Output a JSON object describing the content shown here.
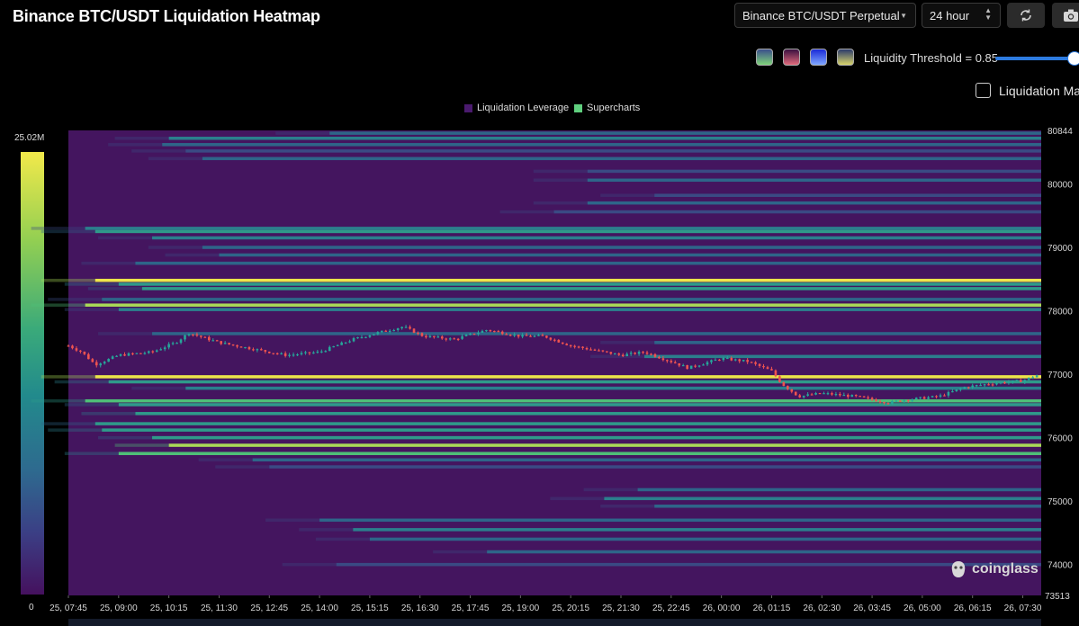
{
  "title": "Binance BTC/USDT Liquidation Heatmap",
  "controls": {
    "pair_select": "Binance BTC/USDT Perpetual",
    "range_select": "24 hour",
    "refresh_icon": "refresh-icon",
    "camera_icon": "camera-icon",
    "palettes": [
      {
        "name": "viridis",
        "from": "#3b4f8c",
        "to": "#7fd37a"
      },
      {
        "name": "magma",
        "from": "#3a1040",
        "to": "#e06a7c"
      },
      {
        "name": "blue",
        "from": "#1a2bd8",
        "to": "#7fa6ff"
      },
      {
        "name": "cividis",
        "from": "#2b3a6b",
        "to": "#d8d36b"
      }
    ],
    "threshold_label": "Liquidity Threshold = 0.85",
    "threshold_value": 0.85,
    "checkbox_label": "Liquidation Map"
  },
  "legend": [
    {
      "label": "Liquidation Leverage",
      "color": "#4a1a6e"
    },
    {
      "label": "Supercharts",
      "color": "#5fcf7e"
    }
  ],
  "colorbar": {
    "max_label": "25.02M",
    "min_label": "0"
  },
  "chart_data": {
    "type": "heatmap",
    "background_color": "#44155f",
    "x_ticks": [
      "25, 07:45",
      "25, 09:00",
      "25, 10:15",
      "25, 11:30",
      "25, 12:45",
      "25, 14:00",
      "25, 15:15",
      "25, 16:30",
      "25, 17:45",
      "25, 19:00",
      "25, 20:15",
      "25, 21:30",
      "25, 22:45",
      "26, 00:00",
      "26, 01:15",
      "26, 02:30",
      "26, 03:45",
      "26, 05:00",
      "26, 06:15",
      "26, 07:30"
    ],
    "y_top": "80844",
    "y_bottom": "73513",
    "y_ticks": [
      "80000",
      "79000",
      "78000",
      "77000",
      "76000",
      "75000",
      "74000"
    ],
    "ylim": [
      73513,
      80844
    ],
    "bands": [
      {
        "p": 80800,
        "s": 7.8,
        "l": 0.35
      },
      {
        "p": 80720,
        "s": 3.0,
        "l": 0.45
      },
      {
        "p": 80620,
        "s": 2.8,
        "l": 0.4
      },
      {
        "p": 80520,
        "s": 3.5,
        "l": 0.3
      },
      {
        "p": 80400,
        "s": 4.0,
        "l": 0.35
      },
      {
        "p": 80200,
        "s": 15.5,
        "l": 0.3
      },
      {
        "p": 80060,
        "s": 15.5,
        "l": 0.35
      },
      {
        "p": 79820,
        "s": 17.5,
        "l": 0.3
      },
      {
        "p": 79700,
        "s": 15.5,
        "l": 0.35
      },
      {
        "p": 79560,
        "s": 14.5,
        "l": 0.3
      },
      {
        "p": 79300,
        "s": 0.5,
        "l": 0.45
      },
      {
        "p": 79250,
        "s": 0.8,
        "l": 0.5
      },
      {
        "p": 79150,
        "s": 2.5,
        "l": 0.45
      },
      {
        "p": 79000,
        "s": 4.0,
        "l": 0.4
      },
      {
        "p": 78880,
        "s": 4.5,
        "l": 0.4
      },
      {
        "p": 78750,
        "s": 2.0,
        "l": 0.35
      },
      {
        "p": 78480,
        "s": 0.8,
        "l": 0.95
      },
      {
        "p": 78420,
        "s": 1.5,
        "l": 0.55
      },
      {
        "p": 78350,
        "s": 2.2,
        "l": 0.5
      },
      {
        "p": 78180,
        "s": 1.0,
        "l": 0.4
      },
      {
        "p": 78090,
        "s": 0.5,
        "l": 0.85
      },
      {
        "p": 78020,
        "s": 1.5,
        "l": 0.45
      },
      {
        "p": 77640,
        "s": 2.5,
        "l": 0.4
      },
      {
        "p": 77500,
        "s": 17.5,
        "l": 0.4
      },
      {
        "p": 77280,
        "s": 17.2,
        "l": 0.45
      },
      {
        "p": 76960,
        "s": 0.8,
        "l": 0.92
      },
      {
        "p": 76880,
        "s": 1.2,
        "l": 0.55
      },
      {
        "p": 76780,
        "s": 3.5,
        "l": 0.45
      },
      {
        "p": 76580,
        "s": 0.5,
        "l": 0.7
      },
      {
        "p": 76520,
        "s": 1.5,
        "l": 0.5
      },
      {
        "p": 76380,
        "s": 2.0,
        "l": 0.55
      },
      {
        "p": 76220,
        "s": 0.8,
        "l": 0.5
      },
      {
        "p": 76120,
        "s": 1.0,
        "l": 0.55
      },
      {
        "p": 76000,
        "s": 2.5,
        "l": 0.5
      },
      {
        "p": 75880,
        "s": 3.0,
        "l": 0.8
      },
      {
        "p": 75750,
        "s": 1.5,
        "l": 0.6
      },
      {
        "p": 75650,
        "s": 5.5,
        "l": 0.35
      },
      {
        "p": 75540,
        "s": 6.0,
        "l": 0.3
      },
      {
        "p": 75180,
        "s": 17.0,
        "l": 0.4
      },
      {
        "p": 75040,
        "s": 16.0,
        "l": 0.45
      },
      {
        "p": 74920,
        "s": 17.5,
        "l": 0.35
      },
      {
        "p": 74700,
        "s": 7.5,
        "l": 0.4
      },
      {
        "p": 74550,
        "s": 8.5,
        "l": 0.45
      },
      {
        "p": 74400,
        "s": 9.0,
        "l": 0.35
      },
      {
        "p": 74200,
        "s": 12.5,
        "l": 0.4
      },
      {
        "p": 74000,
        "s": 8.0,
        "l": 0.3
      }
    ],
    "price_path": [
      {
        "t": 0,
        "v": 77450
      },
      {
        "t": 0.4,
        "v": 77350
      },
      {
        "t": 0.8,
        "v": 77150
      },
      {
        "t": 1.5,
        "v": 77300
      },
      {
        "t": 2.5,
        "v": 77350
      },
      {
        "t": 3.2,
        "v": 77500
      },
      {
        "t": 3.6,
        "v": 77650
      },
      {
        "t": 4.5,
        "v": 77500
      },
      {
        "t": 5.5,
        "v": 77400
      },
      {
        "t": 6.5,
        "v": 77300
      },
      {
        "t": 7.5,
        "v": 77350
      },
      {
        "t": 8.5,
        "v": 77550
      },
      {
        "t": 9.2,
        "v": 77650
      },
      {
        "t": 10.0,
        "v": 77750
      },
      {
        "t": 10.6,
        "v": 77600
      },
      {
        "t": 11.5,
        "v": 77550
      },
      {
        "t": 12.5,
        "v": 77700
      },
      {
        "t": 13.5,
        "v": 77600
      },
      {
        "t": 14.2,
        "v": 77600
      },
      {
        "t": 15.0,
        "v": 77450
      },
      {
        "t": 16.5,
        "v": 77300
      },
      {
        "t": 17.2,
        "v": 77350
      },
      {
        "t": 18.0,
        "v": 77200
      },
      {
        "t": 18.5,
        "v": 77100
      },
      {
        "t": 19.5,
        "v": 77250
      },
      {
        "t": 20.3,
        "v": 77200
      },
      {
        "t": 21.0,
        "v": 77050
      },
      {
        "t": 21.3,
        "v": 76850
      },
      {
        "t": 21.8,
        "v": 76650
      },
      {
        "t": 22.5,
        "v": 76700
      },
      {
        "t": 23.5,
        "v": 76650
      },
      {
        "t": 24.5,
        "v": 76550
      },
      {
        "t": 25.0,
        "v": 76600
      },
      {
        "t": 26.0,
        "v": 76650
      },
      {
        "t": 26.8,
        "v": 76800
      },
      {
        "t": 27.5,
        "v": 76850
      },
      {
        "t": 28.5,
        "v": 76900
      },
      {
        "t": 29.0,
        "v": 77000
      }
    ]
  },
  "watermark": "coinglass"
}
